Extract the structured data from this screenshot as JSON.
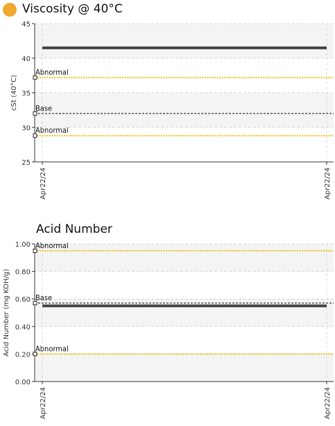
{
  "colors": {
    "accent_dot": "#F0A830",
    "value_line": "#444444",
    "abnormal_line": "#E8C21A",
    "base_line": "#555555",
    "band_fill": "#F4F4F4",
    "grid": "#D8D8D8"
  },
  "chart_data": [
    {
      "type": "line",
      "title": "Viscosity @ 40°C",
      "ylabel": "cSt (40°C)",
      "xlabel": "",
      "x_ticks": [
        "Apr22/24",
        "Apr22/24"
      ],
      "y_ticks": [
        "25",
        "30",
        "35",
        "40",
        "45"
      ],
      "ylim": [
        25,
        45
      ],
      "grid": true,
      "series": [
        {
          "values": [
            41.5,
            41.5
          ]
        }
      ],
      "reference_lines": [
        {
          "label": "Abnormal",
          "value": 37.2,
          "kind": "abnormal"
        },
        {
          "label": "Base",
          "value": 32.0,
          "kind": "base"
        },
        {
          "label": "Abnormal",
          "value": 28.8,
          "kind": "abnormal"
        }
      ]
    },
    {
      "type": "line",
      "title": "Acid Number",
      "ylabel": "Acid Number (mg KOH/g)",
      "xlabel": "",
      "x_ticks": [
        "Apr22/24",
        "Apr22/24"
      ],
      "y_ticks": [
        "0.00",
        "0.20",
        "0.40",
        "0.60",
        "0.80",
        "1.00"
      ],
      "ylim": [
        0,
        1
      ],
      "grid": true,
      "series": [
        {
          "values": [
            0.55,
            0.55
          ]
        }
      ],
      "reference_lines": [
        {
          "label": "Abnormal",
          "value": 0.95,
          "kind": "abnormal"
        },
        {
          "label": "Base",
          "value": 0.57,
          "kind": "base"
        },
        {
          "label": "Abnormal",
          "value": 0.2,
          "kind": "abnormal"
        }
      ]
    }
  ]
}
